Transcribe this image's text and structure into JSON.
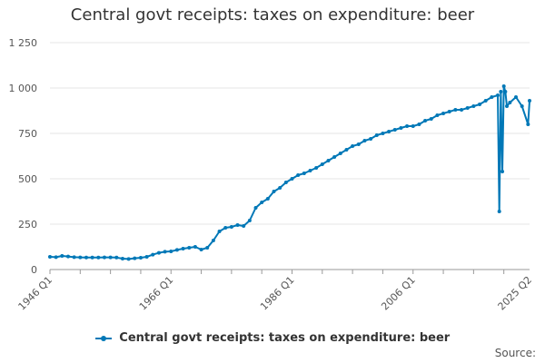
{
  "chart_data": {
    "type": "line",
    "title": "Central govt receipts: taxes on expenditure: beer",
    "xlabel": "",
    "ylabel": "",
    "ylim": [
      0,
      1250
    ],
    "yticks": [
      0,
      250,
      500,
      750,
      1000,
      1250
    ],
    "ytick_labels": [
      "0",
      "250",
      "500",
      "750",
      "1 000",
      "1 250"
    ],
    "xlim": [
      1946.0,
      2025.25
    ],
    "xticks": [
      1946.0,
      1966.0,
      1986.0,
      2006.0,
      2025.25
    ],
    "xtick_labels": [
      "1946 Q1",
      "1966 Q1",
      "1986 Q1",
      "2006 Q1",
      "2025 Q2"
    ],
    "grid": true,
    "legend_position": "bottom-center",
    "color": "#0078b7",
    "series": [
      {
        "name": "Central govt receipts: taxes on expenditure: beer",
        "x": [
          1946.0,
          1947.0,
          1948.0,
          1949.0,
          1950.0,
          1951.0,
          1952.0,
          1953.0,
          1954.0,
          1955.0,
          1956.0,
          1957.0,
          1958.0,
          1959.0,
          1960.0,
          1961.0,
          1962.0,
          1963.0,
          1964.0,
          1965.0,
          1966.0,
          1967.0,
          1968.0,
          1969.0,
          1970.0,
          1971.0,
          1972.0,
          1973.0,
          1974.0,
          1975.0,
          1976.0,
          1977.0,
          1978.0,
          1979.0,
          1980.0,
          1981.0,
          1982.0,
          1983.0,
          1984.0,
          1985.0,
          1986.0,
          1987.0,
          1988.0,
          1989.0,
          1990.0,
          1991.0,
          1992.0,
          1993.0,
          1994.0,
          1995.0,
          1996.0,
          1997.0,
          1998.0,
          1999.0,
          2000.0,
          2001.0,
          2002.0,
          2003.0,
          2004.0,
          2005.0,
          2006.0,
          2007.0,
          2008.0,
          2009.0,
          2010.0,
          2011.0,
          2012.0,
          2013.0,
          2014.0,
          2015.0,
          2016.0,
          2017.0,
          2018.0,
          2019.0,
          2020.0,
          2020.25,
          2020.5,
          2020.75,
          2021.0,
          2021.25,
          2021.5,
          2022.0,
          2023.0,
          2024.0,
          2025.0,
          2025.25
        ],
        "values": [
          70,
          68,
          75,
          72,
          68,
          67,
          66,
          66,
          66,
          67,
          67,
          66,
          60,
          58,
          62,
          65,
          70,
          82,
          92,
          98,
          100,
          108,
          115,
          120,
          125,
          110,
          120,
          160,
          210,
          230,
          235,
          245,
          240,
          270,
          340,
          370,
          390,
          430,
          450,
          480,
          500,
          520,
          530,
          545,
          560,
          580,
          600,
          620,
          640,
          660,
          680,
          690,
          710,
          720,
          740,
          750,
          760,
          770,
          780,
          790,
          790,
          800,
          820,
          830,
          850,
          860,
          870,
          880,
          880,
          890,
          900,
          910,
          930,
          950,
          960,
          320,
          980,
          540,
          1010,
          980,
          900,
          920,
          950,
          900,
          800,
          930
        ]
      }
    ],
    "source_label": "Source:"
  }
}
